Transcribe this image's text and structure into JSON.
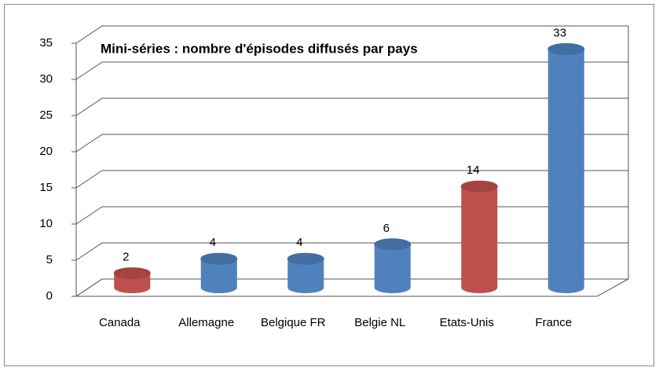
{
  "chart_data": {
    "type": "bar3d",
    "title": "Mini-séries : nombre d'épisodes diffusés par pays",
    "categories": [
      "Canada",
      "Allemagne",
      "Belgique FR",
      "Belgie NL",
      "Etats-Unis",
      "France"
    ],
    "values": [
      2,
      4,
      4,
      6,
      14,
      33
    ],
    "colors": [
      "#c0504d",
      "#4f81bd",
      "#4f81bd",
      "#4f81bd",
      "#c0504d",
      "#4f81bd"
    ],
    "ylim": [
      0,
      35
    ],
    "yticks": [
      0,
      5,
      10,
      15,
      20,
      25,
      30,
      35
    ],
    "grid": true
  }
}
